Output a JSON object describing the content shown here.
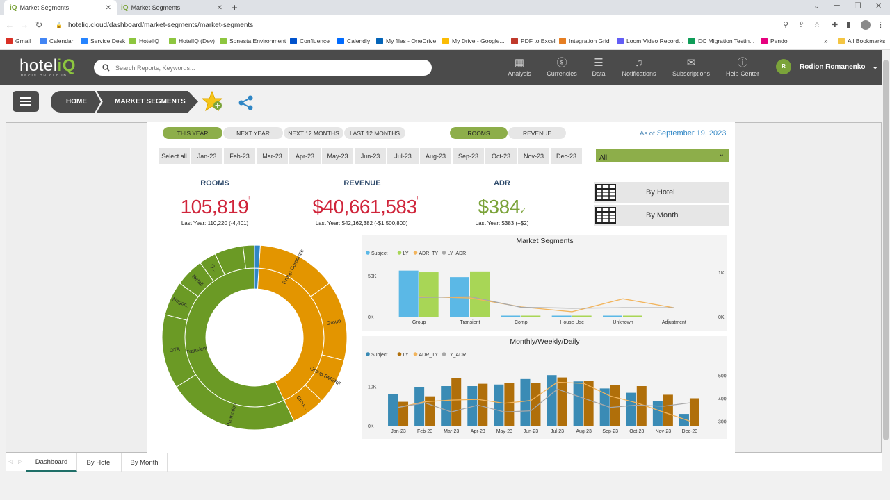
{
  "browser": {
    "tabs": [
      {
        "title": "Market Segments",
        "favicon": "iQ"
      },
      {
        "title": "Market Segments",
        "favicon": "iQ"
      }
    ],
    "new_tab": "+",
    "url": "hoteliq.cloud/dashboard/market-segments/market-segments",
    "bookmarks": [
      {
        "label": "Gmail",
        "color": "#d93025"
      },
      {
        "label": "Calendar",
        "color": "#4285f4"
      },
      {
        "label": "Service Desk",
        "color": "#2684ff"
      },
      {
        "label": "HotelIQ",
        "color": "#8dc63f"
      },
      {
        "label": "HotelIQ (Dev)",
        "color": "#8dc63f"
      },
      {
        "label": "Sonesta Environment",
        "color": "#8dc63f"
      },
      {
        "label": "Confluence",
        "color": "#0052cc"
      },
      {
        "label": "Calendly",
        "color": "#006bff"
      },
      {
        "label": "My files - OneDrive",
        "color": "#0364b8"
      },
      {
        "label": "My Drive - Google...",
        "color": "#fbbc04"
      },
      {
        "label": "PDF to Excel",
        "color": "#c0392b"
      },
      {
        "label": "Integration Grid",
        "color": "#e67e22"
      },
      {
        "label": "Loom Video Record...",
        "color": "#625df5"
      },
      {
        "label": "DC Migration Testin...",
        "color": "#0f9d58"
      },
      {
        "label": "Pendo",
        "color": "#e6007e"
      }
    ],
    "bookmarks_more": "»",
    "all_bookmarks": "All Bookmarks"
  },
  "header": {
    "logo_main": "hotel",
    "logo_accent": "iQ",
    "logo_sub": "DECISION CLOUD",
    "search_placeholder": "Search Reports, Keywords...",
    "nav": [
      {
        "label": "Analysis",
        "icon": "grid-icon"
      },
      {
        "label": "Currencies",
        "icon": "dollar-icon"
      },
      {
        "label": "Data",
        "icon": "database-icon"
      },
      {
        "label": "Notifications",
        "icon": "bell-icon"
      },
      {
        "label": "Subscriptions",
        "icon": "mail-icon"
      },
      {
        "label": "Help Center",
        "icon": "info-icon"
      }
    ],
    "user_initial": "R",
    "user_name": "Rodion Romanenko"
  },
  "breadcrumb": {
    "home": "HOME",
    "current": "MARKET SEGMENTS"
  },
  "filters": {
    "period": [
      {
        "label": "THIS YEAR",
        "active": true
      },
      {
        "label": "NEXT YEAR",
        "active": false
      },
      {
        "label": "NEXT 12 MONTHS",
        "active": false
      },
      {
        "label": "LAST 12 MONTHS",
        "active": false
      }
    ],
    "measure": [
      {
        "label": "ROOMS",
        "active": true
      },
      {
        "label": "REVENUE",
        "active": false
      }
    ],
    "as_of_label": "As of",
    "as_of_date": "September 19, 2023",
    "months": [
      "Select all",
      "Jan-23",
      "Feb-23",
      "Mar-23",
      "Apr-23",
      "May-23",
      "Jun-23",
      "Jul-23",
      "Aug-23",
      "Sep-23",
      "Oct-23",
      "Nov-23",
      "Dec-23"
    ],
    "dropdown_value": "All"
  },
  "kpis": {
    "rooms": {
      "label": "ROOMS",
      "value": "105,819",
      "sub": "Last Year: 110,220 (-4,401)",
      "color": "#d0253b"
    },
    "revenue": {
      "label": "REVENUE",
      "value": "$40,661,583",
      "sub": "Last Year: $42,162,382 (-$1,500,800)",
      "color": "#d0253b"
    },
    "adr": {
      "label": "ADR",
      "value": "$384",
      "sub": "Last Year: $383 (+$2)",
      "color": "#7ba33a"
    }
  },
  "side_buttons": {
    "by_hotel": "By Hotel",
    "by_month": "By Month"
  },
  "sunburst": {
    "inner": [
      {
        "label": "Transient",
        "value": 57,
        "color": "#6b9a25"
      },
      {
        "label": "",
        "value": 42,
        "color": "#e39500"
      },
      {
        "label": "",
        "value": 1,
        "color": "#2f86c5"
      }
    ],
    "outer": [
      {
        "label": "OTA",
        "value": 13,
        "color": "#6b9a25"
      },
      {
        "label": "Negoti...",
        "value": 6,
        "color": "#6b9a25"
      },
      {
        "label": "Retail",
        "value": 5,
        "color": "#6b9a25"
      },
      {
        "label": "Q...",
        "value": 3,
        "color": "#6b9a25"
      },
      {
        "label": "",
        "value": 5,
        "color": "#6b9a25"
      },
      {
        "label": "",
        "value": 2,
        "color": "#6b9a25"
      },
      {
        "label": "Promotion",
        "value": 23,
        "color": "#6b9a25"
      },
      {
        "label": "Group Corporate",
        "value": 14,
        "color": "#e39500"
      },
      {
        "label": "Group",
        "value": 14,
        "color": "#e39500"
      },
      {
        "label": "Group SMERF",
        "value": 8,
        "color": "#e39500"
      },
      {
        "label": "Grou...",
        "value": 6,
        "color": "#e39500"
      },
      {
        "label": "",
        "value": 1,
        "color": "#2f86c5"
      }
    ]
  },
  "chart_data": [
    {
      "type": "bar",
      "title": "Market Segments",
      "legend": [
        "Subject",
        "LY",
        "ADR_TY",
        "LY_ADR"
      ],
      "legend_colors": [
        "#5bb8e6",
        "#a8d656",
        "#f2b45c",
        "#a8a8a8"
      ],
      "categories": [
        "Group",
        "Transient",
        "Comp",
        "House Use",
        "Unknown",
        "Adjustment"
      ],
      "series": [
        {
          "name": "Subject",
          "kind": "bar",
          "values": [
            56000,
            48000,
            400,
            300,
            200,
            0
          ]
        },
        {
          "name": "LY",
          "kind": "bar",
          "values": [
            54000,
            55000,
            400,
            300,
            200,
            0
          ]
        }
      ],
      "lines": [
        {
          "name": "ADR_TY",
          "values": [
            450,
            420,
            220,
            110,
            400,
            200
          ]
        },
        {
          "name": "LY_ADR",
          "values": [
            430,
            450,
            210,
            190,
            200,
            200
          ]
        }
      ],
      "y_ticks_left": [
        "50K",
        "0K"
      ],
      "y_left_max": 65000,
      "y_ticks_right": [
        "1K",
        "0K"
      ],
      "y_right_max": 1200
    },
    {
      "type": "bar",
      "title": "Monthly/Weekly/Daily",
      "legend": [
        "Subject",
        "LY",
        "ADR_TY",
        "LY_ADR"
      ],
      "legend_colors": [
        "#3a8bb5",
        "#b06f0a",
        "#f2b45c",
        "#a8a8a8"
      ],
      "categories": [
        "Jan-23",
        "Feb-23",
        "Mar-23",
        "Apr-23",
        "May-23",
        "Jun-23",
        "Jul-23",
        "Aug-23",
        "Sep-23",
        "Oct-23",
        "Nov-23",
        "Dec-23"
      ],
      "series": [
        {
          "name": "Subject",
          "kind": "bar",
          "values": [
            8000,
            9800,
            10100,
            10100,
            10500,
            11900,
            12900,
            11300,
            9500,
            8400,
            6300,
            3000
          ]
        },
        {
          "name": "LY",
          "kind": "bar",
          "values": [
            6100,
            7500,
            12100,
            10700,
            10900,
            10900,
            12300,
            11500,
            10400,
            10100,
            7900,
            7000
          ]
        }
      ],
      "lines": [
        {
          "name": "ADR_TY",
          "values": [
            360,
            385,
            392,
            395,
            378,
            390,
            470,
            465,
            410,
            380,
            340,
            300
          ]
        },
        {
          "name": "LY_ADR",
          "values": [
            360,
            380,
            340,
            370,
            340,
            345,
            440,
            400,
            360,
            370,
            365,
            380
          ]
        }
      ],
      "y_ticks_left": [
        "10K",
        "0K"
      ],
      "y_left_max": 14000,
      "y_ticks_right": [
        "500",
        "400",
        "300"
      ],
      "y_right_range": [
        280,
        520
      ]
    }
  ],
  "bottom_tabs": [
    {
      "label": "Dashboard",
      "active": true
    },
    {
      "label": "By Hotel",
      "active": false
    },
    {
      "label": "By Month",
      "active": false
    }
  ]
}
